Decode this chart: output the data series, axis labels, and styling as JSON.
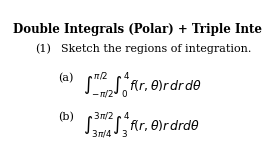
{
  "title": "Double Integrals (Polar) + Triple Inte",
  "title_fontsize": 8.5,
  "title_fontweight": "bold",
  "bg_color": "#ffffff",
  "text_color": "#000000",
  "item1_label": "(1)",
  "item1_text": "Sketch the regions of integration.",
  "part_a_label": "(a)",
  "part_b_label": "(b)",
  "part_a_integral": "$\\int_{-\\pi/2}^{\\pi/2}\\int_{0}^{4} f(r,\\theta)r\\, dr\\, d\\theta$",
  "part_b_integral": "$\\int_{3\\pi/4}^{3\\pi/2}\\int_{3}^{4} f(r,\\theta)r\\, drd\\theta$"
}
